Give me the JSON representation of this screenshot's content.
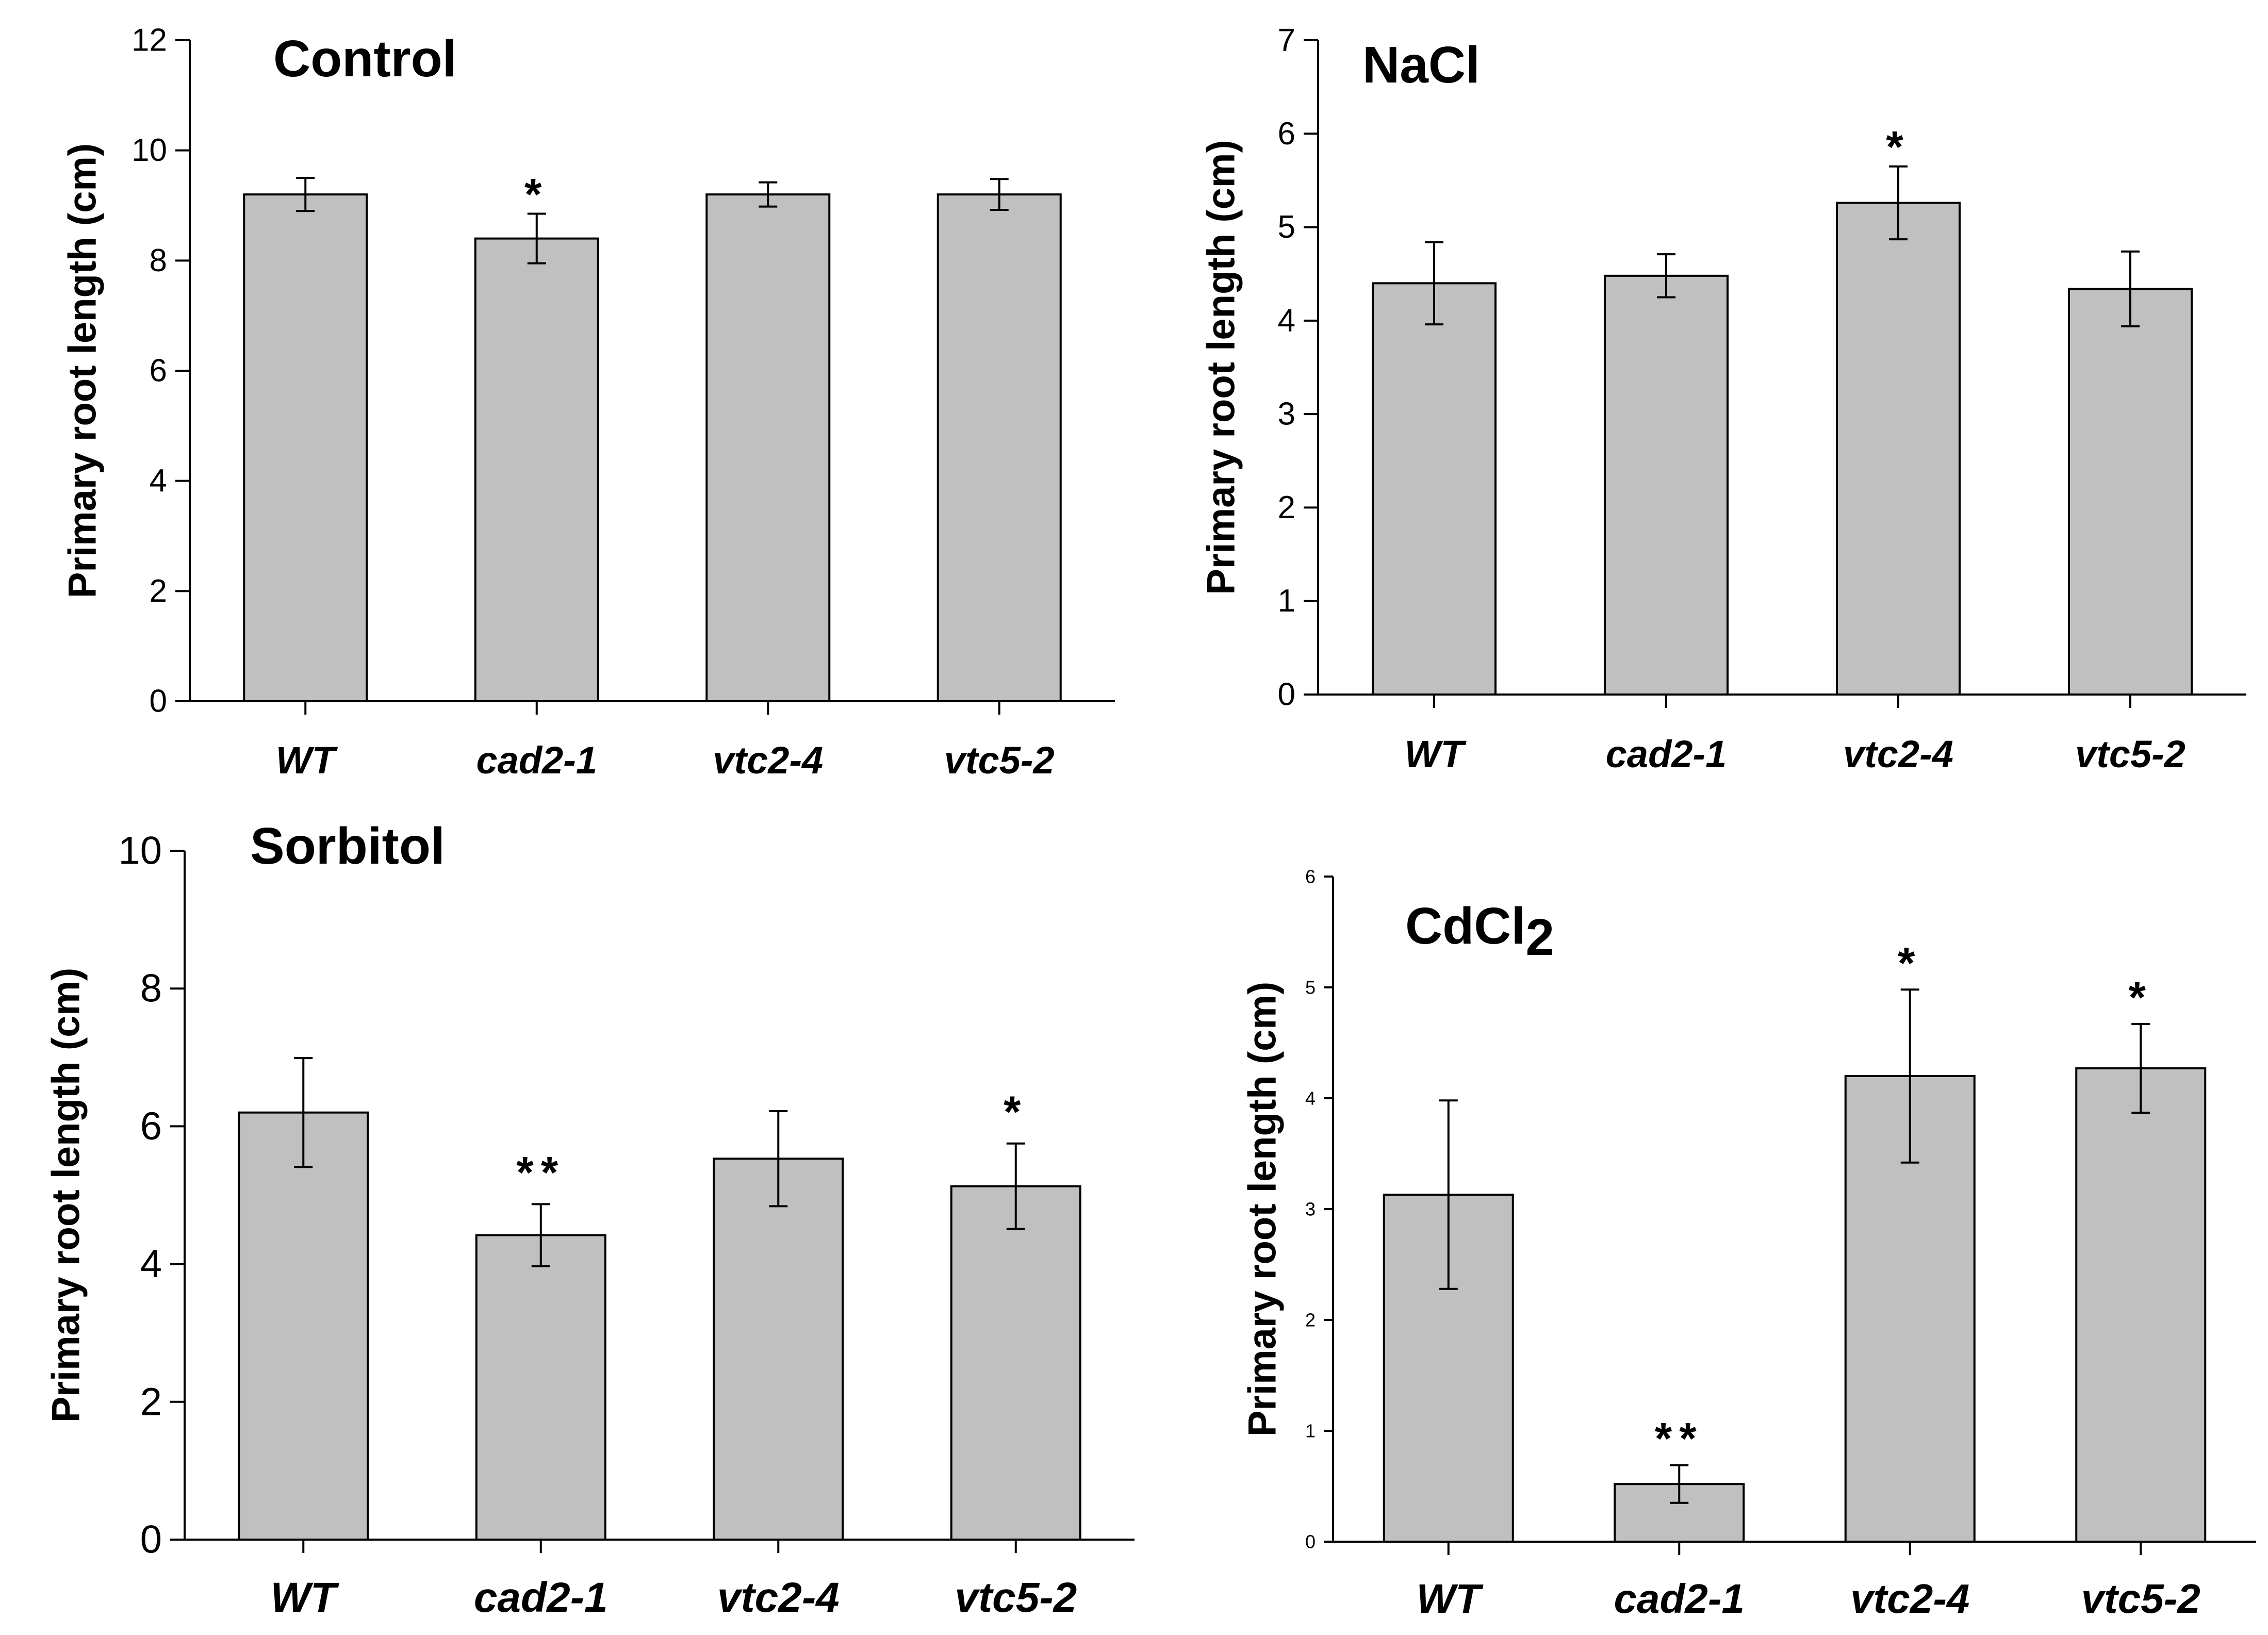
{
  "chart_data": [
    {
      "type": "bar",
      "title": "Control",
      "categories": [
        "WT",
        "cad2-1",
        "vtc2-4",
        "vtc5-2"
      ],
      "values": [
        9.2,
        8.4,
        9.2,
        9.2
      ],
      "errors": [
        0.3,
        0.45,
        0.22,
        0.28
      ],
      "significance": [
        "",
        "*",
        "",
        ""
      ],
      "ylabel": "Primary root length (cm)",
      "xlabel": "",
      "ylim": [
        0,
        12
      ],
      "yticks": [
        0,
        2,
        4,
        6,
        8,
        10,
        12
      ]
    },
    {
      "type": "bar",
      "title": "NaCl",
      "categories": [
        "WT",
        "cad2-1",
        "vtc2-4",
        "vtc5-2"
      ],
      "values": [
        4.4,
        4.48,
        5.26,
        4.34
      ],
      "errors": [
        0.44,
        0.23,
        0.39,
        0.4
      ],
      "significance": [
        "",
        "",
        "*",
        ""
      ],
      "ylabel": "Primary root length (cm)",
      "xlabel": "",
      "ylim": [
        0,
        7
      ],
      "yticks": [
        0,
        1,
        2,
        3,
        4,
        5,
        6,
        7
      ]
    },
    {
      "type": "bar",
      "title": "Sorbitol",
      "categories": [
        "WT",
        "cad2-1",
        "vtc2-4",
        "vtc5-2"
      ],
      "values": [
        6.2,
        4.42,
        5.53,
        5.13
      ],
      "errors": [
        0.79,
        0.45,
        0.69,
        0.62
      ],
      "significance": [
        "",
        "**",
        "",
        "*"
      ],
      "ylabel": "Primary root length (cm)",
      "xlabel": "",
      "ylim": [
        0,
        10
      ],
      "yticks": [
        0,
        2,
        4,
        6,
        8,
        10
      ]
    },
    {
      "type": "bar",
      "title": "CdCl2",
      "title_main": "CdCl",
      "title_sub": "2",
      "categories": [
        "WT",
        "cad2-1",
        "vtc2-4",
        "vtc5-2"
      ],
      "values": [
        3.13,
        0.52,
        4.2,
        4.27
      ],
      "errors": [
        0.85,
        0.17,
        0.78,
        0.4
      ],
      "significance": [
        "",
        "**",
        "*",
        "*"
      ],
      "ylabel": "Primary root length (cm)",
      "xlabel": "",
      "ylim": [
        0,
        6
      ],
      "yticks": [
        0,
        1,
        2,
        3,
        4,
        5,
        6
      ]
    }
  ]
}
